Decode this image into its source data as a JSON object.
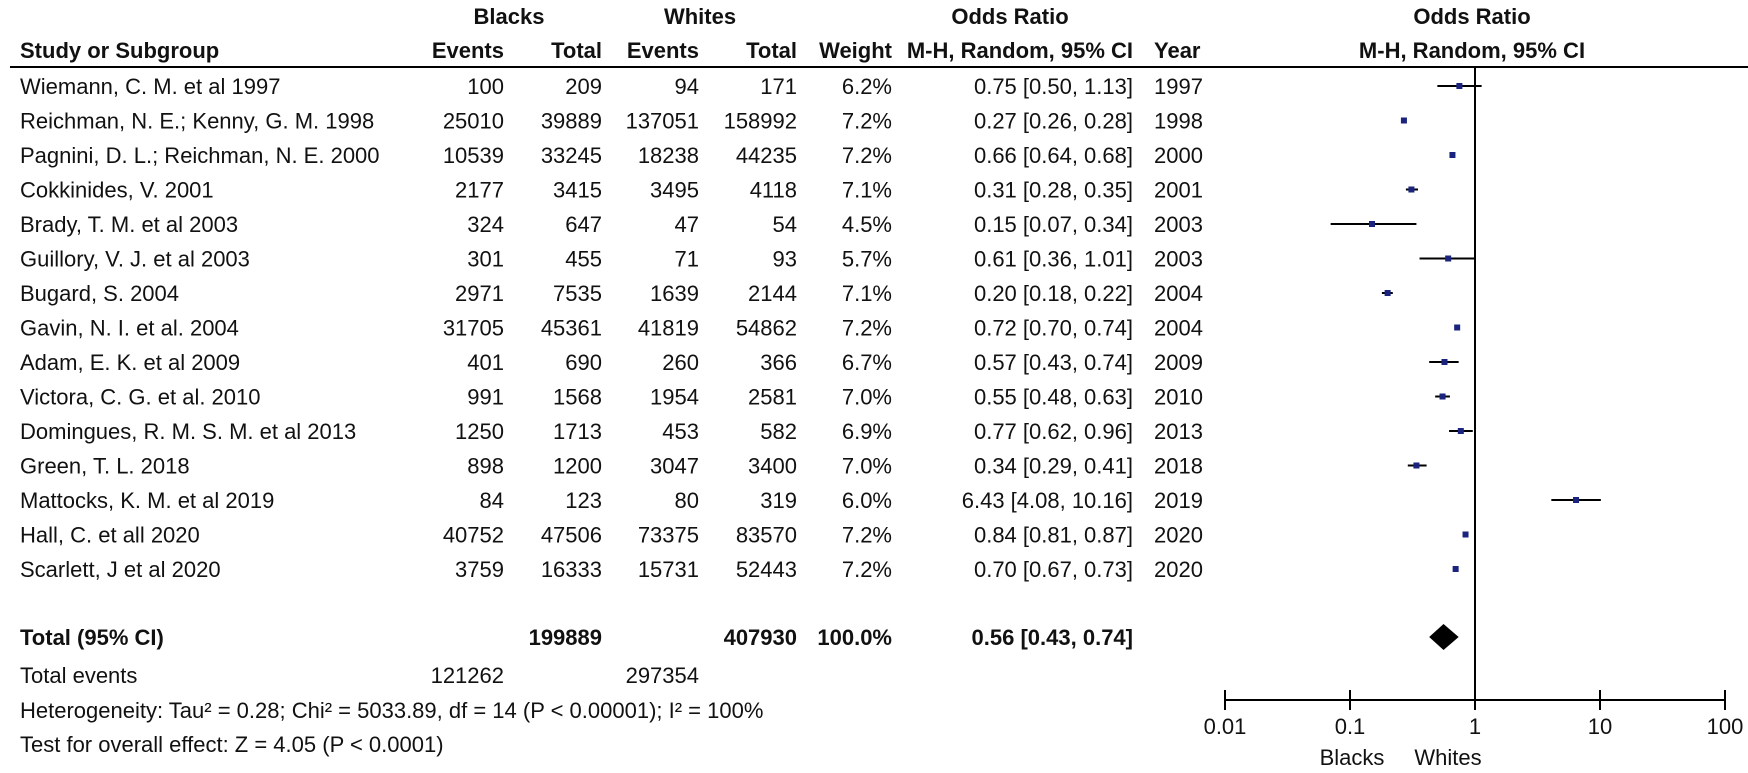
{
  "headers": {
    "group1": "Blacks",
    "group2": "Whites",
    "or_group": "Odds Ratio",
    "plot_group": "Odds Ratio",
    "study": "Study or Subgroup",
    "events1": "Events",
    "total1": "Total",
    "events2": "Events",
    "total2": "Total",
    "weight": "Weight",
    "or_method": "M-H, Random, 95% CI",
    "year": "Year",
    "plot_method": "M-H, Random, 95% CI"
  },
  "studies": [
    {
      "study": "Wiemann, C. M. et al 1997",
      "events1": "100",
      "total1": "209",
      "events2": "94",
      "total2": "171",
      "weight": "6.2%",
      "or_text": "0.75 [0.50, 1.13]",
      "year": "1997"
    },
    {
      "study": "Reichman, N. E.; Kenny, G. M. 1998",
      "events1": "25010",
      "total1": "39889",
      "events2": "137051",
      "total2": "158992",
      "weight": "7.2%",
      "or_text": "0.27 [0.26, 0.28]",
      "year": "1998"
    },
    {
      "study": "Pagnini, D. L.; Reichman, N. E. 2000",
      "events1": "10539",
      "total1": "33245",
      "events2": "18238",
      "total2": "44235",
      "weight": "7.2%",
      "or_text": "0.66 [0.64, 0.68]",
      "year": "2000"
    },
    {
      "study": "Cokkinides, V. 2001",
      "events1": "2177",
      "total1": "3415",
      "events2": "3495",
      "total2": "4118",
      "weight": "7.1%",
      "or_text": "0.31 [0.28, 0.35]",
      "year": "2001"
    },
    {
      "study": "Brady, T. M. et al 2003",
      "events1": "324",
      "total1": "647",
      "events2": "47",
      "total2": "54",
      "weight": "4.5%",
      "or_text": "0.15 [0.07, 0.34]",
      "year": "2003"
    },
    {
      "study": "Guillory, V. J. et al 2003",
      "events1": "301",
      "total1": "455",
      "events2": "71",
      "total2": "93",
      "weight": "5.7%",
      "or_text": "0.61 [0.36, 1.01]",
      "year": "2003"
    },
    {
      "study": "Bugard, S. 2004",
      "events1": "2971",
      "total1": "7535",
      "events2": "1639",
      "total2": "2144",
      "weight": "7.1%",
      "or_text": "0.20 [0.18, 0.22]",
      "year": "2004"
    },
    {
      "study": "Gavin, N. I. et al. 2004",
      "events1": "31705",
      "total1": "45361",
      "events2": "41819",
      "total2": "54862",
      "weight": "7.2%",
      "or_text": "0.72 [0.70, 0.74]",
      "year": "2004"
    },
    {
      "study": "Adam, E. K. et al 2009",
      "events1": "401",
      "total1": "690",
      "events2": "260",
      "total2": "366",
      "weight": "6.7%",
      "or_text": "0.57 [0.43, 0.74]",
      "year": "2009"
    },
    {
      "study": "Victora, C. G. et al. 2010",
      "events1": "991",
      "total1": "1568",
      "events2": "1954",
      "total2": "2581",
      "weight": "7.0%",
      "or_text": "0.55 [0.48, 0.63]",
      "year": "2010"
    },
    {
      "study": "Domingues, R. M. S. M. et al 2013",
      "events1": "1250",
      "total1": "1713",
      "events2": "453",
      "total2": "582",
      "weight": "6.9%",
      "or_text": "0.77 [0.62, 0.96]",
      "year": "2013"
    },
    {
      "study": "Green, T. L. 2018",
      "events1": "898",
      "total1": "1200",
      "events2": "3047",
      "total2": "3400",
      "weight": "7.0%",
      "or_text": "0.34 [0.29, 0.41]",
      "year": "2018"
    },
    {
      "study": "Mattocks, K. M. et al 2019",
      "events1": "84",
      "total1": "123",
      "events2": "80",
      "total2": "319",
      "weight": "6.0%",
      "or_text": "6.43 [4.08, 10.16]",
      "year": "2019"
    },
    {
      "study": "Hall, C. et all 2020",
      "events1": "40752",
      "total1": "47506",
      "events2": "73375",
      "total2": "83570",
      "weight": "7.2%",
      "or_text": "0.84 [0.81, 0.87]",
      "year": "2020"
    },
    {
      "study": "Scarlett, J et al 2020",
      "events1": "3759",
      "total1": "16333",
      "events2": "15731",
      "total2": "52443",
      "weight": "7.2%",
      "or_text": "0.70 [0.67, 0.73]",
      "year": "2020"
    }
  ],
  "total": {
    "label": "Total (95% CI)",
    "total1": "199889",
    "total2": "407930",
    "weight": "100.0%",
    "or_text": "0.56 [0.43, 0.74]"
  },
  "total_events": {
    "label": "Total events",
    "events1": "121262",
    "events2": "297354"
  },
  "heterogeneity": "Heterogeneity: Tau² = 0.28; Chi² = 5033.89, df = 14 (P < 0.00001); I² = 100%",
  "overall_effect": "Test for overall effect: Z = 4.05 (P < 0.0001)",
  "axis": {
    "ticks": [
      "0.01",
      "0.1",
      "1",
      "10",
      "100"
    ],
    "left_label": "Blacks",
    "right_label": "Whites"
  },
  "colors": {
    "marker": "#1a237e",
    "line": "#000000",
    "diamond": "#000000"
  },
  "chart_data": {
    "type": "forest",
    "scale": "log",
    "xlim": [
      0.01,
      100
    ],
    "null_line": 1,
    "points": [
      {
        "study": "Wiemann, C. M. et al 1997",
        "or": 0.75,
        "lo": 0.5,
        "hi": 1.13,
        "weight": 6.2
      },
      {
        "study": "Reichman, N. E.; Kenny, G. M. 1998",
        "or": 0.27,
        "lo": 0.26,
        "hi": 0.28,
        "weight": 7.2
      },
      {
        "study": "Pagnini, D. L.; Reichman, N. E. 2000",
        "or": 0.66,
        "lo": 0.64,
        "hi": 0.68,
        "weight": 7.2
      },
      {
        "study": "Cokkinides, V. 2001",
        "or": 0.31,
        "lo": 0.28,
        "hi": 0.35,
        "weight": 7.1
      },
      {
        "study": "Brady, T. M. et al 2003",
        "or": 0.15,
        "lo": 0.07,
        "hi": 0.34,
        "weight": 4.5
      },
      {
        "study": "Guillory, V. J. et al 2003",
        "or": 0.61,
        "lo": 0.36,
        "hi": 1.01,
        "weight": 5.7
      },
      {
        "study": "Bugard, S. 2004",
        "or": 0.2,
        "lo": 0.18,
        "hi": 0.22,
        "weight": 7.1
      },
      {
        "study": "Gavin, N. I. et al. 2004",
        "or": 0.72,
        "lo": 0.7,
        "hi": 0.74,
        "weight": 7.2
      },
      {
        "study": "Adam, E. K. et al 2009",
        "or": 0.57,
        "lo": 0.43,
        "hi": 0.74,
        "weight": 6.7
      },
      {
        "study": "Victora, C. G. et al. 2010",
        "or": 0.55,
        "lo": 0.48,
        "hi": 0.63,
        "weight": 7.0
      },
      {
        "study": "Domingues, R. M. S. M. et al 2013",
        "or": 0.77,
        "lo": 0.62,
        "hi": 0.96,
        "weight": 6.9
      },
      {
        "study": "Green, T. L. 2018",
        "or": 0.34,
        "lo": 0.29,
        "hi": 0.41,
        "weight": 7.0
      },
      {
        "study": "Mattocks, K. M. et al 2019",
        "or": 6.43,
        "lo": 4.08,
        "hi": 10.16,
        "weight": 6.0
      },
      {
        "study": "Hall, C. et all 2020",
        "or": 0.84,
        "lo": 0.81,
        "hi": 0.87,
        "weight": 7.2
      },
      {
        "study": "Scarlett, J et al 2020",
        "or": 0.7,
        "lo": 0.67,
        "hi": 0.73,
        "weight": 7.2
      }
    ],
    "pooled": {
      "or": 0.56,
      "lo": 0.43,
      "hi": 0.74
    }
  }
}
